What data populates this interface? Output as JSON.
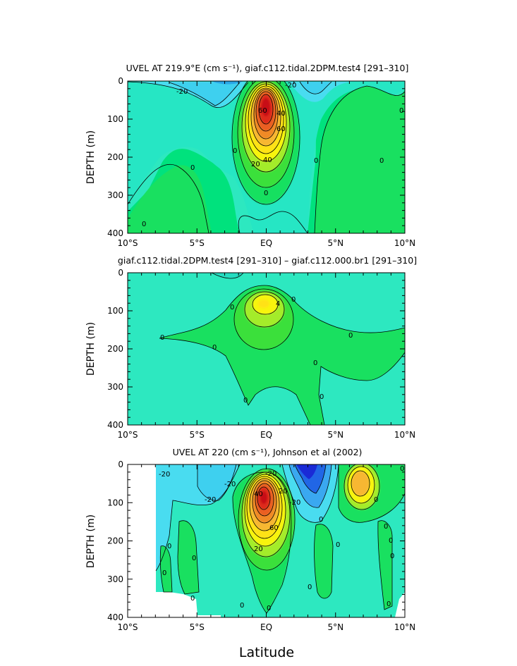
{
  "chart_data": [
    {
      "type": "heatmap",
      "title": "UVEL AT 219.9°E (cm s⁻¹), giaf.c112.tidal.2DPM.test4 [291–310]",
      "xlabel": "",
      "ylabel": "DEPTH (m)",
      "xlim": [
        -10,
        10
      ],
      "ylim": [
        400,
        0
      ],
      "x_ticks": [
        "10°S",
        "5°S",
        "EQ",
        "5°N",
        "10°N"
      ],
      "y_ticks": [
        "0",
        "100",
        "200",
        "300",
        "400"
      ],
      "contour_labels": [
        "-20",
        "60",
        "40",
        "20",
        "60",
        "-20",
        "40",
        "0",
        "0",
        "0",
        "0",
        "0",
        "0",
        "0"
      ],
      "features": [
        {
          "x": 0,
          "y": 115,
          "value": 100
        },
        {
          "x": -3.5,
          "y": 20,
          "value": -25
        },
        {
          "x": 3.0,
          "y": 20,
          "value": -20
        },
        {
          "x": 7,
          "y": 250,
          "value": 5
        },
        {
          "x": -7,
          "y": 330,
          "value": 5
        }
      ]
    },
    {
      "type": "heatmap",
      "title": "giaf.c112.tidal.2DPM.test4 [291–310] – giaf.c112.000.br1 [291–310]",
      "xlabel": "",
      "ylabel": "DEPTH (m)",
      "xlim": [
        -10,
        10
      ],
      "ylim": [
        400,
        0
      ],
      "x_ticks": [
        "10°S",
        "5°S",
        "EQ",
        "5°N",
        "10°N"
      ],
      "y_ticks": [
        "0",
        "100",
        "200",
        "300",
        "400"
      ],
      "contour_labels": [
        "0",
        "4",
        "0",
        "0",
        "0",
        "0",
        "0",
        "0",
        "0"
      ],
      "features": [
        {
          "x": 0,
          "y": 85,
          "value": 6
        },
        {
          "x": 0,
          "y": 120,
          "value": 2
        }
      ]
    },
    {
      "type": "heatmap",
      "title": "UVEL AT 220 (cm s⁻¹), Johnson et al (2002)",
      "xlabel": "Latitude",
      "ylabel": "DEPTH (m)",
      "xlim": [
        -10,
        10
      ],
      "ylim": [
        400,
        0
      ],
      "x_ticks": [
        "10°S",
        "5°S",
        "EQ",
        "5°N",
        "10°N"
      ],
      "y_ticks": [
        "0",
        "100",
        "200",
        "300",
        "400"
      ],
      "contour_labels": [
        "-20",
        "-20",
        "-20",
        "40",
        "60",
        "20",
        "-20",
        "-20",
        "20",
        "0",
        "0",
        "0",
        "0",
        "0",
        "0",
        "0",
        "0",
        "0",
        "0",
        "0",
        "0",
        "0",
        "0",
        "0"
      ],
      "features": [
        {
          "x": 0,
          "y": 110,
          "value": 100
        },
        {
          "x": 2.7,
          "y": 20,
          "value": -60
        },
        {
          "x": 6.8,
          "y": 55,
          "value": 40
        },
        {
          "x": -4.2,
          "y": 60,
          "value": -20
        },
        {
          "x": 4,
          "y": 230,
          "value": 5
        }
      ]
    }
  ]
}
